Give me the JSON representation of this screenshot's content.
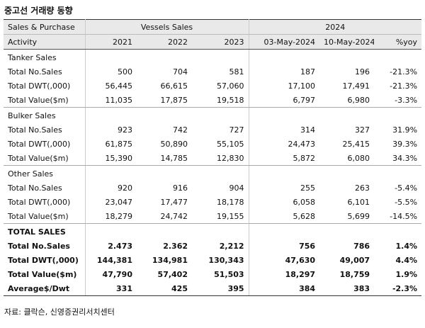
{
  "title": "중고선 거래량 동향",
  "header": {
    "group_row": [
      "Sales & Purchase",
      "Vessels Sales",
      "2024"
    ],
    "column_row": [
      "Activity",
      "2021",
      "2022",
      "2023",
      "03-May-2024",
      "10-May-2024",
      "%yoy"
    ]
  },
  "sections": [
    {
      "title": "Tanker Sales",
      "rows": [
        {
          "label": "Total No.Sales",
          "values": [
            "500",
            "704",
            "581",
            "187",
            "196",
            "-21.3%"
          ]
        },
        {
          "label": "Total DWT(,000)",
          "values": [
            "56,445",
            "66,615",
            "57,060",
            "17,100",
            "17,491",
            "-21.3%"
          ]
        },
        {
          "label": "Total Value($m)",
          "values": [
            "11,035",
            "17,875",
            "19,518",
            "6,797",
            "6,980",
            "-3.3%"
          ]
        }
      ]
    },
    {
      "title": "Bulker Sales",
      "rows": [
        {
          "label": "Total No.Sales",
          "values": [
            "923",
            "742",
            "727",
            "314",
            "327",
            "31.9%"
          ]
        },
        {
          "label": "Total DWT(,000)",
          "values": [
            "61,875",
            "50,890",
            "55,105",
            "24,473",
            "25,415",
            "39.3%"
          ]
        },
        {
          "label": "Total Value($m)",
          "values": [
            "15,390",
            "14,785",
            "12,830",
            "5,872",
            "6,080",
            "34.3%"
          ]
        }
      ]
    },
    {
      "title": "Other Sales",
      "rows": [
        {
          "label": "Total No.Sales",
          "values": [
            "920",
            "916",
            "904",
            "255",
            "263",
            "-5.4%"
          ]
        },
        {
          "label": "Total DWT(,000)",
          "values": [
            "23,047",
            "17,477",
            "18,178",
            "6,058",
            "6,101",
            "-5.5%"
          ]
        },
        {
          "label": "Total Value($m)",
          "values": [
            "18,279",
            "24,742",
            "19,155",
            "5,628",
            "5,699",
            "-14.5%"
          ]
        }
      ]
    },
    {
      "title": "TOTAL SALES",
      "rows": [
        {
          "label": "Total No.Sales",
          "values": [
            "2.473",
            "2.362",
            "2,212",
            "756",
            "786",
            "1.4%"
          ]
        },
        {
          "label": "Total DWT(,000)",
          "values": [
            "144,381",
            "134,981",
            "130,343",
            "47,630",
            "49,007",
            "4.4%"
          ]
        },
        {
          "label": "Total Value($m)",
          "values": [
            "47,790",
            "57,402",
            "51,503",
            "18,297",
            "18,759",
            "1.9%"
          ]
        },
        {
          "label": "Average$/Dwt",
          "values": [
            "331",
            "425",
            "395",
            "384",
            "383",
            "-2.3%"
          ]
        }
      ]
    }
  ],
  "source": "자료: 클락슨, 신영증권리서치센터"
}
